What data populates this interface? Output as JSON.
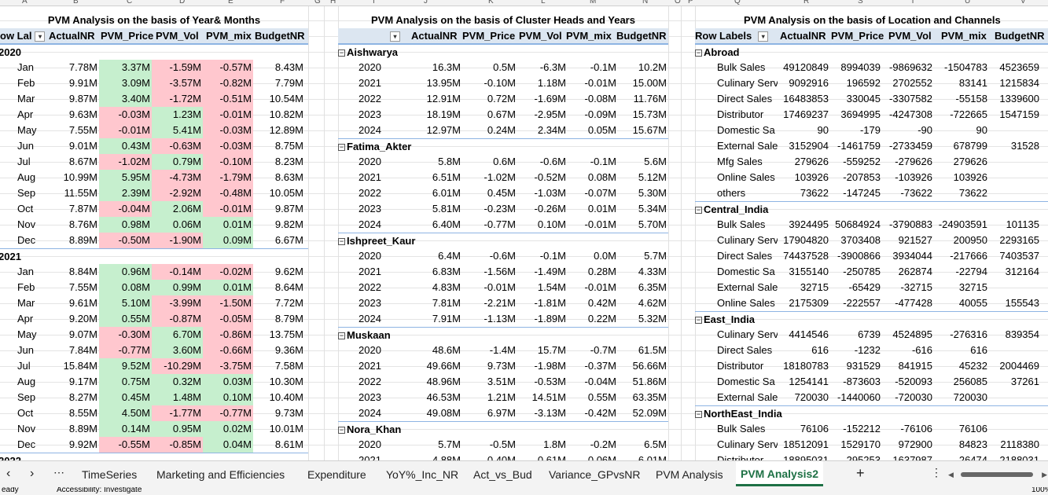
{
  "column_letters": [
    "A",
    "B",
    "C",
    "D",
    "E",
    "F",
    "G",
    "H",
    "I",
    "J",
    "K",
    "L",
    "M",
    "N",
    "O",
    "P",
    "Q",
    "R",
    "S",
    "T",
    "U",
    "V"
  ],
  "pivot1": {
    "title": "PVM Analysis on the basis of Year& Months",
    "headers": [
      "ow Lal",
      "ActualNR",
      "PVM_Price",
      "PVM_Vol",
      "PVM_mix",
      "BudgetNR"
    ],
    "groups": [
      {
        "label": "2020",
        "rows": [
          {
            "l": "Jan",
            "v": [
              "7.78M",
              "3.37M",
              "-1.59M",
              "-0.57M",
              "8.43M"
            ],
            "f": [
              "",
              "g",
              "r",
              "r",
              ""
            ]
          },
          {
            "l": "Feb",
            "v": [
              "9.91M",
              "3.09M",
              "-3.57M",
              "-0.82M",
              "7.79M"
            ],
            "f": [
              "",
              "g",
              "r",
              "r",
              ""
            ]
          },
          {
            "l": "Mar",
            "v": [
              "9.87M",
              "3.40M",
              "-1.72M",
              "-0.51M",
              "10.54M"
            ],
            "f": [
              "",
              "g",
              "r",
              "r",
              ""
            ]
          },
          {
            "l": "Apr",
            "v": [
              "9.63M",
              "-0.03M",
              "1.23M",
              "-0.01M",
              "10.82M"
            ],
            "f": [
              "",
              "r",
              "g",
              "r",
              ""
            ]
          },
          {
            "l": "May",
            "v": [
              "7.55M",
              "-0.01M",
              "5.41M",
              "-0.03M",
              "12.89M"
            ],
            "f": [
              "",
              "r",
              "g",
              "r",
              ""
            ]
          },
          {
            "l": "Jun",
            "v": [
              "9.01M",
              "0.43M",
              "-0.63M",
              "-0.03M",
              "8.75M"
            ],
            "f": [
              "",
              "g",
              "r",
              "r",
              ""
            ]
          },
          {
            "l": "Jul",
            "v": [
              "8.67M",
              "-1.02M",
              "0.79M",
              "-0.10M",
              "8.23M"
            ],
            "f": [
              "",
              "r",
              "g",
              "r",
              ""
            ]
          },
          {
            "l": "Aug",
            "v": [
              "10.99M",
              "5.95M",
              "-4.73M",
              "-1.79M",
              "8.63M"
            ],
            "f": [
              "",
              "g",
              "r",
              "r",
              ""
            ]
          },
          {
            "l": "Sep",
            "v": [
              "11.55M",
              "2.39M",
              "-2.92M",
              "-0.48M",
              "10.05M"
            ],
            "f": [
              "",
              "g",
              "r",
              "r",
              ""
            ]
          },
          {
            "l": "Oct",
            "v": [
              "7.87M",
              "-0.04M",
              "2.06M",
              "-0.01M",
              "9.87M"
            ],
            "f": [
              "",
              "r",
              "g",
              "r",
              ""
            ]
          },
          {
            "l": "Nov",
            "v": [
              "8.76M",
              "0.98M",
              "0.06M",
              "0.01M",
              "9.82M"
            ],
            "f": [
              "",
              "g",
              "g",
              "g",
              ""
            ]
          },
          {
            "l": "Dec",
            "v": [
              "8.89M",
              "-0.50M",
              "-1.90M",
              "0.09M",
              "6.67M"
            ],
            "f": [
              "",
              "r",
              "r",
              "g",
              ""
            ]
          }
        ]
      },
      {
        "label": "2021",
        "rows": [
          {
            "l": "Jan",
            "v": [
              "8.84M",
              "0.96M",
              "-0.14M",
              "-0.02M",
              "9.62M"
            ],
            "f": [
              "",
              "g",
              "r",
              "r",
              ""
            ]
          },
          {
            "l": "Feb",
            "v": [
              "7.55M",
              "0.08M",
              "0.99M",
              "0.01M",
              "8.64M"
            ],
            "f": [
              "",
              "g",
              "g",
              "g",
              ""
            ]
          },
          {
            "l": "Mar",
            "v": [
              "9.61M",
              "5.10M",
              "-3.99M",
              "-1.50M",
              "7.72M"
            ],
            "f": [
              "",
              "g",
              "r",
              "r",
              ""
            ]
          },
          {
            "l": "Apr",
            "v": [
              "9.20M",
              "0.55M",
              "-0.87M",
              "-0.05M",
              "8.79M"
            ],
            "f": [
              "",
              "g",
              "r",
              "r",
              ""
            ]
          },
          {
            "l": "May",
            "v": [
              "9.07M",
              "-0.30M",
              "6.70M",
              "-0.86M",
              "13.75M"
            ],
            "f": [
              "",
              "r",
              "g",
              "r",
              ""
            ]
          },
          {
            "l": "Jun",
            "v": [
              "7.84M",
              "-0.77M",
              "3.60M",
              "-0.66M",
              "9.36M"
            ],
            "f": [
              "",
              "r",
              "g",
              "r",
              ""
            ]
          },
          {
            "l": "Jul",
            "v": [
              "15.84M",
              "9.52M",
              "-10.29M",
              "-3.75M",
              "7.58M"
            ],
            "f": [
              "",
              "g",
              "r",
              "r",
              ""
            ]
          },
          {
            "l": "Aug",
            "v": [
              "9.17M",
              "0.75M",
              "0.32M",
              "0.03M",
              "10.30M"
            ],
            "f": [
              "",
              "g",
              "g",
              "g",
              ""
            ]
          },
          {
            "l": "Sep",
            "v": [
              "8.27M",
              "0.45M",
              "1.48M",
              "0.10M",
              "10.40M"
            ],
            "f": [
              "",
              "g",
              "g",
              "g",
              ""
            ]
          },
          {
            "l": "Oct",
            "v": [
              "8.55M",
              "4.50M",
              "-1.77M",
              "-0.77M",
              "9.73M"
            ],
            "f": [
              "",
              "g",
              "r",
              "r",
              ""
            ]
          },
          {
            "l": "Nov",
            "v": [
              "8.89M",
              "0.14M",
              "0.95M",
              "0.02M",
              "10.01M"
            ],
            "f": [
              "",
              "g",
              "g",
              "g",
              ""
            ]
          },
          {
            "l": "Dec",
            "v": [
              "9.92M",
              "-0.55M",
              "-0.85M",
              "0.04M",
              "8.61M"
            ],
            "f": [
              "",
              "r",
              "r",
              "g",
              ""
            ]
          }
        ]
      },
      {
        "label": "2022",
        "rows": []
      }
    ]
  },
  "pivot2": {
    "title": "PVM Analysis on the basis of Cluster Heads and Years",
    "headers": [
      "",
      "ActualNR",
      "PVM_Price",
      "PVM_Vol",
      "PVM_mix",
      "BudgetNR"
    ],
    "groups": [
      {
        "label": "Aishwarya",
        "rows": [
          {
            "l": "2020",
            "v": [
              "16.3M",
              "0.5M",
              "-6.3M",
              "-0.1M",
              "10.2M"
            ]
          },
          {
            "l": "2021",
            "v": [
              "13.95M",
              "-0.10M",
              "1.18M",
              "-0.01M",
              "15.00M"
            ]
          },
          {
            "l": "2022",
            "v": [
              "12.91M",
              "0.72M",
              "-1.69M",
              "-0.08M",
              "11.76M"
            ]
          },
          {
            "l": "2023",
            "v": [
              "18.19M",
              "0.67M",
              "-2.95M",
              "-0.09M",
              "15.73M"
            ]
          },
          {
            "l": "2024",
            "v": [
              "12.97M",
              "0.24M",
              "2.34M",
              "0.05M",
              "15.67M"
            ]
          }
        ]
      },
      {
        "label": "Fatima_Akter",
        "rows": [
          {
            "l": "2020",
            "v": [
              "5.8M",
              "0.6M",
              "-0.6M",
              "-0.1M",
              "5.6M"
            ]
          },
          {
            "l": "2021",
            "v": [
              "6.51M",
              "-1.02M",
              "-0.52M",
              "0.08M",
              "5.12M"
            ]
          },
          {
            "l": "2022",
            "v": [
              "6.01M",
              "0.45M",
              "-1.03M",
              "-0.07M",
              "5.30M"
            ]
          },
          {
            "l": "2023",
            "v": [
              "5.81M",
              "-0.23M",
              "-0.26M",
              "0.01M",
              "5.34M"
            ]
          },
          {
            "l": "2024",
            "v": [
              "6.40M",
              "-0.77M",
              "0.10M",
              "-0.01M",
              "5.70M"
            ]
          }
        ]
      },
      {
        "label": "Ishpreet_Kaur",
        "rows": [
          {
            "l": "2020",
            "v": [
              "6.4M",
              "-0.6M",
              "-0.1M",
              "0.0M",
              "5.7M"
            ]
          },
          {
            "l": "2021",
            "v": [
              "6.83M",
              "-1.56M",
              "-1.49M",
              "0.28M",
              "4.33M"
            ]
          },
          {
            "l": "2022",
            "v": [
              "4.83M",
              "-0.01M",
              "1.54M",
              "-0.01M",
              "6.35M"
            ]
          },
          {
            "l": "2023",
            "v": [
              "7.81M",
              "-2.21M",
              "-1.81M",
              "0.42M",
              "4.62M"
            ]
          },
          {
            "l": "2024",
            "v": [
              "7.91M",
              "-1.13M",
              "-1.89M",
              "0.22M",
              "5.32M"
            ]
          }
        ]
      },
      {
        "label": "Muskaan",
        "rows": [
          {
            "l": "2020",
            "v": [
              "48.6M",
              "-1.4M",
              "15.7M",
              "-0.7M",
              "61.5M"
            ]
          },
          {
            "l": "2021",
            "v": [
              "49.66M",
              "9.73M",
              "-1.98M",
              "-0.37M",
              "56.66M"
            ]
          },
          {
            "l": "2022",
            "v": [
              "48.96M",
              "3.51M",
              "-0.53M",
              "-0.04M",
              "51.86M"
            ]
          },
          {
            "l": "2023",
            "v": [
              "46.53M",
              "1.21M",
              "14.51M",
              "0.55M",
              "63.35M"
            ]
          },
          {
            "l": "2024",
            "v": [
              "49.08M",
              "6.97M",
              "-3.13M",
              "-0.42M",
              "52.09M"
            ]
          }
        ]
      },
      {
        "label": "Nora_Khan",
        "rows": [
          {
            "l": "2020",
            "v": [
              "5.7M",
              "-0.5M",
              "1.8M",
              "-0.2M",
              "6.5M"
            ]
          },
          {
            "l": "2021",
            "v": [
              "4.88M",
              "0.40M",
              "0.61M",
              "0.06M",
              "6.01M"
            ]
          }
        ]
      }
    ]
  },
  "pivot3": {
    "title": "PVM Analysis on the basis of Location and Channels",
    "headers": [
      "Row Labels",
      "ActualNR",
      "PVM_Price",
      "PVM_Vol",
      "PVM_mix",
      "BudgetNR"
    ],
    "groups": [
      {
        "label": "Abroad",
        "rows": [
          {
            "l": "Bulk Sales",
            "v": [
              "49120849",
              "8994039",
              "-9869632",
              "-1504783",
              "4523659"
            ]
          },
          {
            "l": "Culinary Serv",
            "v": [
              "9092916",
              "196592",
              "2702552",
              "83141",
              "1215834"
            ]
          },
          {
            "l": "Direct Sales",
            "v": [
              "16483853",
              "330045",
              "-3307582",
              "-55158",
              "1339600"
            ]
          },
          {
            "l": "Distributor",
            "v": [
              "17469237",
              "3694995",
              "-4247308",
              "-722665",
              "1547159"
            ]
          },
          {
            "l": "Domestic Sa",
            "v": [
              "90",
              "-179",
              "-90",
              "90",
              ""
            ]
          },
          {
            "l": "External Sale",
            "v": [
              "3152904",
              "-1461759",
              "-2733459",
              "678799",
              "31528"
            ]
          },
          {
            "l": "Mfg Sales",
            "v": [
              "279626",
              "-559252",
              "-279626",
              "279626",
              ""
            ]
          },
          {
            "l": "Online Sales",
            "v": [
              "103926",
              "-207853",
              "-103926",
              "103926",
              ""
            ]
          },
          {
            "l": "others",
            "v": [
              "73622",
              "-147245",
              "-73622",
              "73622",
              ""
            ]
          }
        ]
      },
      {
        "label": "Central_India",
        "rows": [
          {
            "l": "Bulk Sales",
            "v": [
              "3924495",
              "50684924",
              "-3790883",
              "-24903591",
              "101135"
            ]
          },
          {
            "l": "Culinary Serv",
            "v": [
              "17904820",
              "3703408",
              "921527",
              "200950",
              "2293165"
            ]
          },
          {
            "l": "Direct Sales",
            "v": [
              "74437528",
              "-3900866",
              "3934044",
              "-217666",
              "7403537"
            ]
          },
          {
            "l": "Domestic Sa",
            "v": [
              "3155140",
              "-250785",
              "262874",
              "-22794",
              "312164"
            ]
          },
          {
            "l": "External Sale",
            "v": [
              "32715",
              "-65429",
              "-32715",
              "32715",
              ""
            ]
          },
          {
            "l": "Online Sales",
            "v": [
              "2175309",
              "-222557",
              "-477428",
              "40055",
              "155543"
            ]
          }
        ]
      },
      {
        "label": "East_India",
        "rows": [
          {
            "l": "Culinary Serv",
            "v": [
              "4414546",
              "6739",
              "4524895",
              "-276316",
              "839354"
            ]
          },
          {
            "l": "Direct Sales",
            "v": [
              "616",
              "-1232",
              "-616",
              "616",
              ""
            ]
          },
          {
            "l": "Distributor",
            "v": [
              "18180783",
              "931529",
              "841915",
              "45232",
              "2004469"
            ]
          },
          {
            "l": "Domestic Sa",
            "v": [
              "1254141",
              "-873603",
              "-520093",
              "256085",
              "37261"
            ]
          },
          {
            "l": "External Sale",
            "v": [
              "720030",
              "-1440060",
              "-720030",
              "720030",
              ""
            ]
          }
        ]
      },
      {
        "label": "NorthEast_India",
        "rows": [
          {
            "l": "Bulk Sales",
            "v": [
              "76106",
              "-152212",
              "-76106",
              "76106",
              ""
            ]
          },
          {
            "l": "Culinary Serv",
            "v": [
              "18512091",
              "1529170",
              "972900",
              "84823",
              "2118380"
            ]
          },
          {
            "l": "Distributor",
            "v": [
              "18895031",
              "295253",
              "1637987",
              "26474",
              "2188031"
            ]
          }
        ]
      }
    ]
  },
  "tabs": [
    "TimeSeries",
    "Marketing and Efficiencies",
    "Expenditure",
    "YoY%_Inc_NR",
    "Act_vs_Bud",
    "Variance_GPvsNR",
    "PVM Analysis",
    "PVM Analysis2"
  ],
  "active_tab": "PVM Analysis2",
  "status": {
    "ready": "eady",
    "accessibility": "Accessibility: Investigate",
    "zoom": "100%"
  }
}
